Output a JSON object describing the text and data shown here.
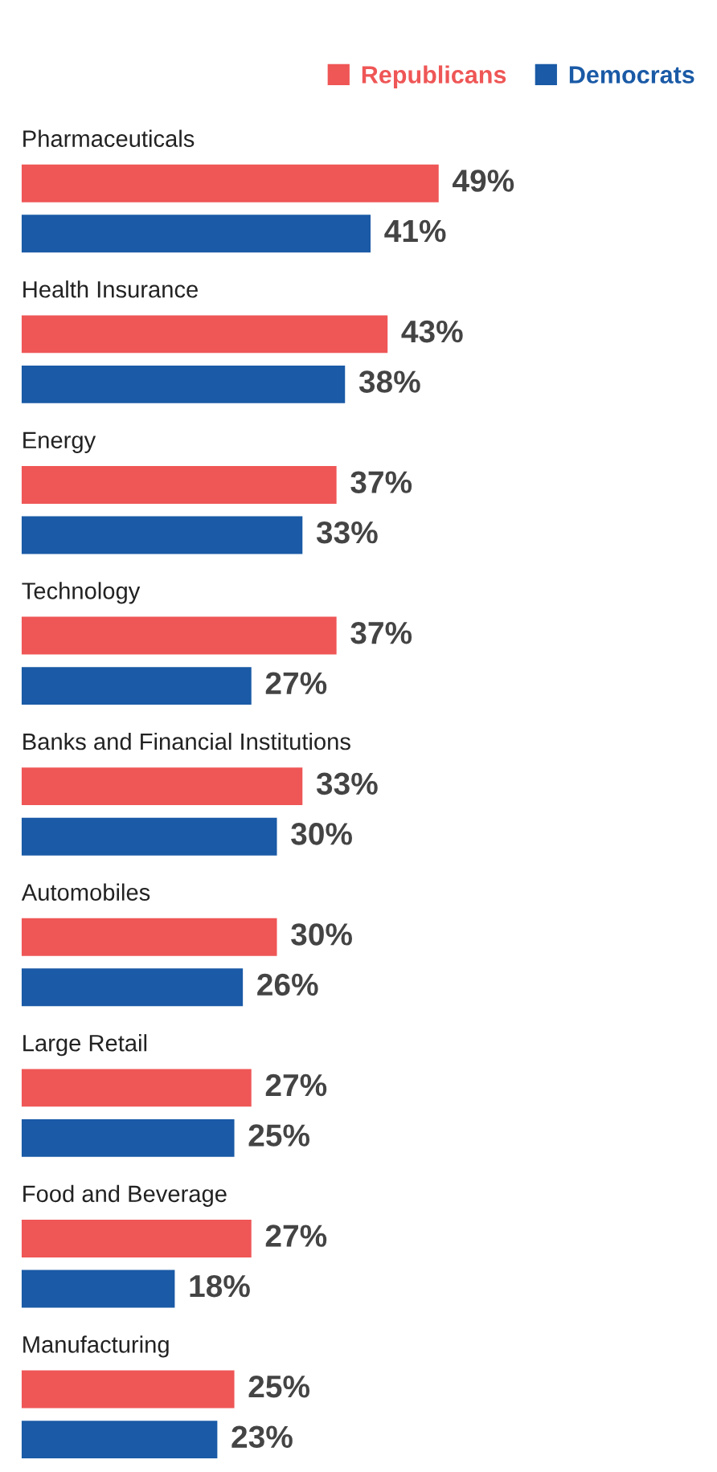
{
  "chart_data": {
    "type": "bar",
    "orientation": "horizontal",
    "categories": [
      "Pharmaceuticals",
      "Health Insurance",
      "Energy",
      "Technology",
      "Banks and Financial Institutions",
      "Automobiles",
      "Large Retail",
      "Food and Beverage",
      "Manufacturing"
    ],
    "series": [
      {
        "name": "Republicans",
        "color": "#ef5656",
        "values": [
          49,
          43,
          37,
          37,
          33,
          30,
          27,
          27,
          25
        ],
        "value_labels": [
          "49%",
          "43%",
          "37%",
          "37%",
          "33%",
          "30%",
          "27%",
          "27%",
          "25%"
        ]
      },
      {
        "name": "Democrats",
        "color": "#1a5aa6",
        "values": [
          41,
          38,
          33,
          27,
          30,
          26,
          25,
          18,
          23
        ],
        "value_labels": [
          "41%",
          "38%",
          "33%",
          "27%",
          "30%",
          "26%",
          "25%",
          "18%",
          "23%"
        ]
      }
    ],
    "legend": "top right"
  }
}
